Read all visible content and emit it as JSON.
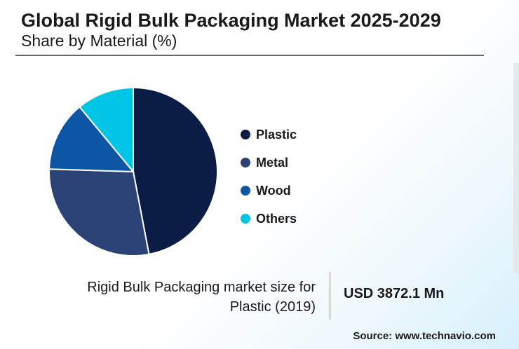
{
  "chart_data": {
    "type": "pie",
    "title": "Global Rigid Bulk Packaging Market 2025-2029",
    "subtitle": "Share by Material (%)",
    "categories": [
      "Plastic",
      "Metal",
      "Wood",
      "Others"
    ],
    "values": [
      47,
      28.5,
      13.5,
      11
    ],
    "colors": [
      "#0b1c47",
      "#2a4275",
      "#0d56a6",
      "#00c5e4"
    ],
    "legend_position": "right"
  },
  "footnote": {
    "label": "Rigid Bulk Packaging market size for Plastic (2019)",
    "value": "USD 3872.1 Mn"
  },
  "source": "Source: www.technavio.com"
}
